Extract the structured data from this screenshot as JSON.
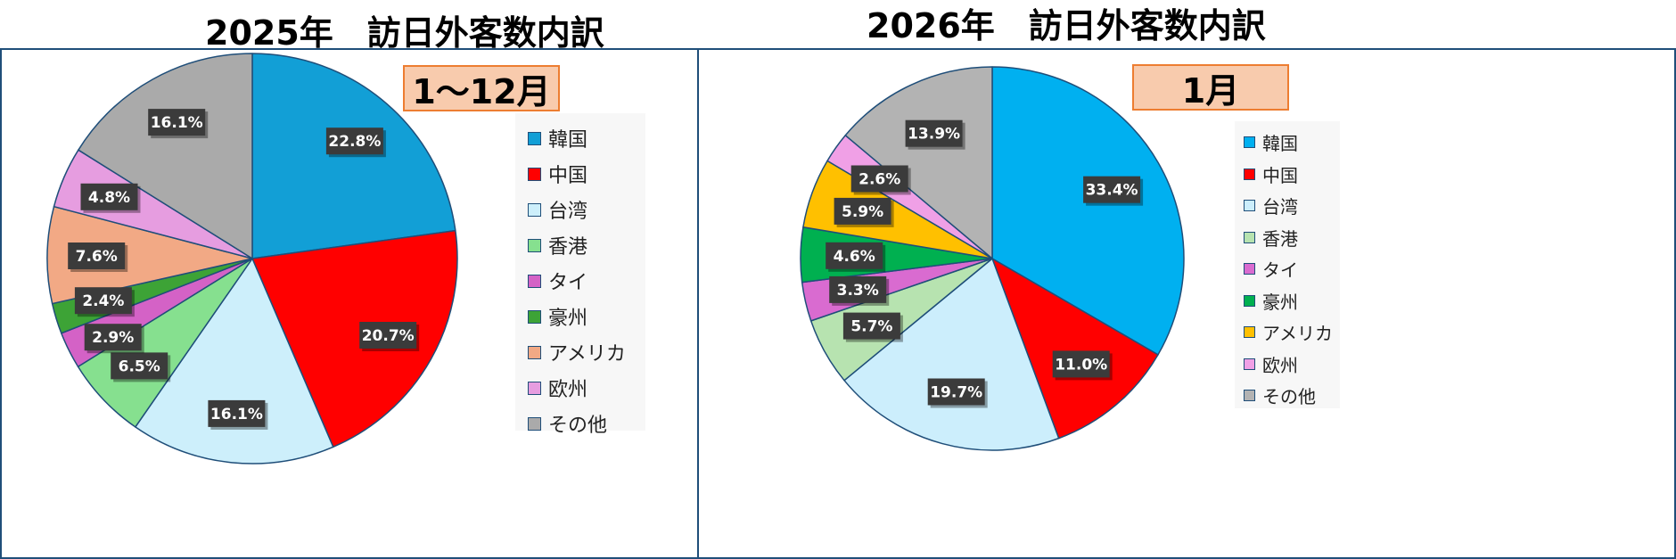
{
  "chart_data": [
    {
      "type": "pie",
      "title": "2025年　訪日外客数内訳",
      "period_label": "1～12月",
      "categories": [
        "韓国",
        "中国",
        "台湾",
        "香港",
        "タイ",
        "豪州",
        "アメリカ",
        "欧州",
        "その他"
      ],
      "values": [
        22.8,
        20.7,
        16.1,
        6.5,
        2.9,
        2.4,
        7.6,
        4.8,
        16.1
      ],
      "data_labels": [
        "22.8%",
        "20.7%",
        "16.1%",
        "6.5%",
        "2.9%",
        "2.4%",
        "7.6%",
        "4.8%",
        "16.1%"
      ],
      "colors": [
        "#129fd6",
        "#ff0000",
        "#cdeffb",
        "#86e08f",
        "#d462c6",
        "#3da336",
        "#f2a985",
        "#e69de0",
        "#aaaaaa"
      ],
      "legend_position": "right"
    },
    {
      "type": "pie",
      "title": "2026年　訪日外客数内訳",
      "period_label": "1月",
      "categories": [
        "韓国",
        "中国",
        "台湾",
        "香港",
        "タイ",
        "豪州",
        "アメリカ",
        "欧州",
        "その他"
      ],
      "values": [
        33.4,
        11.0,
        19.7,
        5.7,
        3.3,
        4.6,
        5.9,
        2.6,
        13.9
      ],
      "data_labels": [
        "33.4%",
        "11.0%",
        "19.7%",
        "5.7%",
        "3.3%",
        "4.6%",
        "5.9%",
        "2.6%",
        "13.9%"
      ],
      "colors": [
        "#00b0f0",
        "#ff0000",
        "#cceefc",
        "#b7e3b0",
        "#d96bd0",
        "#00b050",
        "#ffc000",
        "#f0a0e6",
        "#b3b3b3"
      ],
      "legend_position": "right"
    }
  ]
}
